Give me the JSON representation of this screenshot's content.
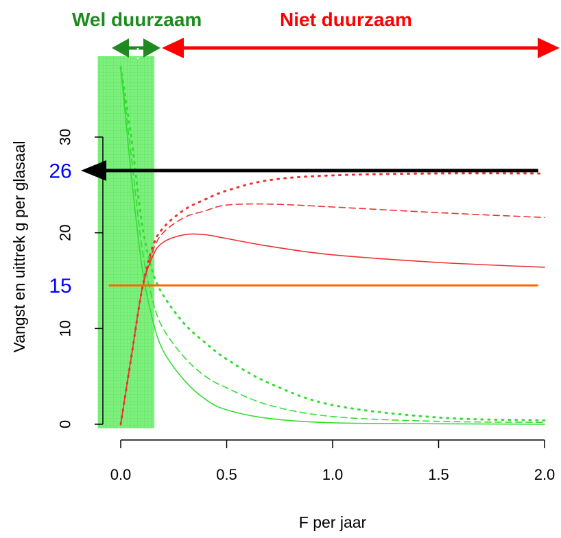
{
  "header": {
    "sustainable_label": "Wel duurzaam",
    "unsustainable_label": "Niet duurzaam"
  },
  "colors": {
    "sustainable": "#1f8a1f",
    "unsustainable": "#ff0000",
    "green_curve": "#33dd33",
    "red_curve": "#ee3030",
    "reference_line": "#ff6600",
    "target_arrow": "#000000",
    "annotation": "#0000ff",
    "shade": "#66ee66"
  },
  "chart_data": {
    "type": "line",
    "xlabel": "F per jaar",
    "ylabel": "Vangst en uittrek  g per glasaal",
    "xlim": [
      -0.05,
      2.05
    ],
    "ylim": [
      -0.5,
      38.5
    ],
    "xticks": [
      0.0,
      0.5,
      1.0,
      1.5,
      2.0
    ],
    "xtick_labels": [
      "0.0",
      "0.5",
      "1.0",
      "1.5",
      "2.0"
    ],
    "yticks": [
      0,
      10,
      20,
      30
    ],
    "ytick_labels": [
      "0",
      "10",
      "20",
      "30"
    ],
    "shaded_region": {
      "x": [
        -0.05,
        0.12
      ],
      "label": "Wel duurzaam"
    },
    "unsustainable_region": {
      "x": [
        0.12,
        2.05
      ],
      "label": "Niet duurzaam"
    },
    "series": [
      {
        "color": "#33dd33",
        "style": "solid",
        "x": [
          0,
          0.05,
          0.1,
          0.15,
          0.2,
          0.3,
          0.4,
          0.5,
          0.7,
          1.0,
          1.5,
          2.0
        ],
        "y": [
          37.3,
          26,
          16.5,
          11,
          7.7,
          4.6,
          2.6,
          1.5,
          0.6,
          0.15,
          0.05,
          0
        ]
      },
      {
        "color": "#33dd33",
        "style": "dashed",
        "x": [
          0,
          0.05,
          0.1,
          0.15,
          0.2,
          0.3,
          0.4,
          0.5,
          0.7,
          1.0,
          1.5,
          2.0
        ],
        "y": [
          37.3,
          28,
          18.5,
          13,
          10,
          7,
          5,
          3.8,
          2,
          0.8,
          0.3,
          0.2
        ]
      },
      {
        "color": "#33dd33",
        "style": "dotted",
        "x": [
          0,
          0.05,
          0.1,
          0.15,
          0.2,
          0.3,
          0.4,
          0.5,
          0.7,
          1.0,
          1.5,
          2.0
        ],
        "y": [
          37.3,
          30,
          21,
          16,
          13.5,
          10.5,
          8.5,
          6.8,
          4.3,
          2,
          0.7,
          0.4
        ]
      },
      {
        "color": "#ee3030",
        "style": "solid",
        "x": [
          0,
          0.05,
          0.1,
          0.15,
          0.2,
          0.3,
          0.4,
          0.5,
          0.7,
          1.0,
          1.5,
          2.0
        ],
        "y": [
          0,
          7,
          14,
          17.5,
          19,
          19.8,
          19.8,
          19.4,
          18.6,
          17.7,
          16.9,
          16.4
        ]
      },
      {
        "color": "#ee3030",
        "style": "dashed",
        "x": [
          0,
          0.05,
          0.1,
          0.15,
          0.2,
          0.3,
          0.4,
          0.5,
          0.7,
          1.0,
          1.5,
          2.0
        ],
        "y": [
          0,
          7,
          14,
          18,
          20,
          21.6,
          22.3,
          22.9,
          23,
          22.7,
          22.1,
          21.6
        ]
      },
      {
        "color": "#ee3030",
        "style": "dotted",
        "x": [
          0,
          0.05,
          0.1,
          0.15,
          0.2,
          0.3,
          0.4,
          0.5,
          0.7,
          1.0,
          1.5,
          2.0
        ],
        "y": [
          0,
          7,
          14,
          18.5,
          20.5,
          22.4,
          23.5,
          24.4,
          25.5,
          26,
          26.2,
          26.2
        ]
      }
    ],
    "reference_lines": [
      {
        "y": 14.5,
        "label": "15",
        "color": "#ff6600",
        "x_range": [
          -0.05,
          1.97
        ]
      },
      {
        "y": 26.5,
        "label": "26",
        "color": "#000000",
        "x_range": [
          -0.2,
          1.97
        ],
        "arrow": "left"
      }
    ]
  }
}
